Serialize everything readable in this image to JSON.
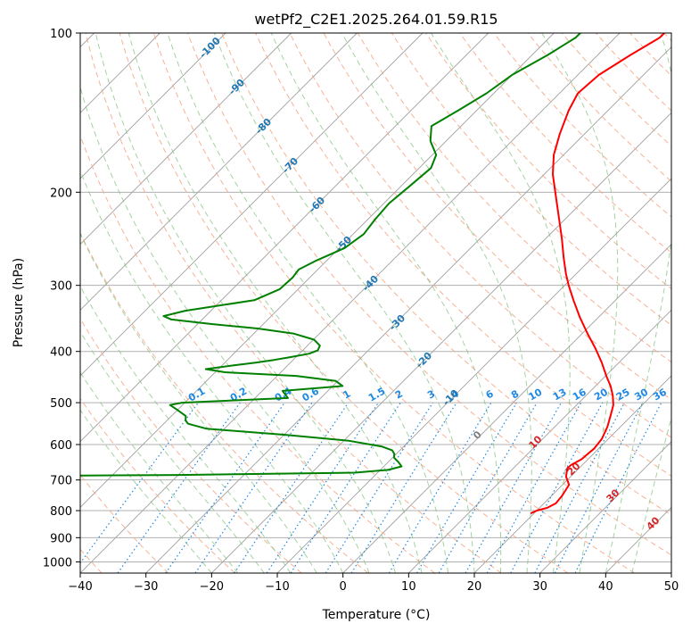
{
  "colors": {
    "temperature": "#ff0000",
    "dewpoint": "#008000",
    "isotherm": "#a0a0a0",
    "dry_adiabat": "#f4a582",
    "moist_adiabat": "#7fbf7b",
    "mixing_ratio": "#1e88e5",
    "dry_adiabat_label": "#1f77b4",
    "moist_label": "#d62728",
    "zero_label": "#808080",
    "boundary": "#d2b48c"
  },
  "chart_data": {
    "type": "line",
    "title": "wetPf2_C2E1.2025.264.01.59.R15",
    "xlabel": "Temperature (°C)",
    "ylabel": "Pressure (hPa)",
    "xlim": [
      -40,
      50
    ],
    "ylim": [
      1050,
      100
    ],
    "x_ticks": [
      -40,
      -30,
      -20,
      -10,
      0,
      10,
      20,
      30,
      40,
      50
    ],
    "y_ticks": [
      100,
      200,
      300,
      400,
      500,
      600,
      700,
      800,
      900,
      1000
    ],
    "x_tick_labels": [
      "−40",
      "−30",
      "−20",
      "−10",
      "0",
      "10",
      "20",
      "30",
      "40",
      "50"
    ],
    "y_tick_labels": [
      "100",
      "200",
      "300",
      "400",
      "500",
      "600",
      "700",
      "800",
      "900",
      "1000"
    ],
    "skew": 1.0,
    "series": [
      {
        "name": "Temperature",
        "p": [
          810,
          800,
          790,
          775,
          750,
          715,
          690,
          665,
          655,
          640,
          610,
          585,
          555,
          525,
          505,
          485,
          465,
          445,
          420,
          395,
          370,
          345,
          320,
          300,
          285,
          265,
          245,
          225,
          205,
          185,
          170,
          155,
          140,
          130,
          120,
          110,
          102,
          100
        ],
        "t": [
          19.5,
          20.0,
          21.2,
          21.8,
          21.6,
          21.0,
          19.3,
          18.2,
          18.3,
          19.0,
          19.3,
          19.0,
          18.0,
          16.6,
          15.6,
          14.1,
          12.3,
          10.1,
          7.4,
          4.3,
          0.8,
          -2.8,
          -6.4,
          -9.4,
          -11.6,
          -14.5,
          -17.5,
          -20.9,
          -24.6,
          -28.7,
          -31.5,
          -33.8,
          -36.0,
          -37.2,
          -36.8,
          -35.0,
          -33.2,
          -33.2
        ]
      },
      {
        "name": "Dewpoint",
        "p": [
          690,
          685,
          678,
          670,
          660,
          648,
          635,
          625,
          615,
          605,
          590,
          575,
          560,
          548,
          540,
          530,
          515,
          505,
          500,
          490,
          475,
          465,
          455,
          445,
          438,
          432,
          425,
          420,
          415,
          410,
          404,
          398,
          390,
          380,
          370,
          362,
          355,
          348,
          343,
          335,
          320,
          305,
          290,
          280,
          270,
          255,
          240,
          225,
          210,
          195,
          180,
          170,
          160,
          150,
          140,
          130,
          120,
          110,
          102,
          100
        ],
        "t": [
          -85.0,
          -40.0,
          -13.5,
          -8.8,
          -7.3,
          -8.4,
          -9.8,
          -10.3,
          -11.2,
          -13.4,
          -19.3,
          -29.8,
          -42.7,
          -46.3,
          -47.2,
          -47.8,
          -50.2,
          -51.9,
          -50.4,
          -35.0,
          -36.9,
          -28.5,
          -30.3,
          -37.1,
          -48.5,
          -51.9,
          -48.2,
          -45.3,
          -42.9,
          -40.8,
          -38.5,
          -37.7,
          -38.1,
          -39.9,
          -44.0,
          -50.2,
          -57.9,
          -64.7,
          -66.4,
          -63.9,
          -55.0,
          -52.8,
          -52.6,
          -52.9,
          -51.7,
          -49.2,
          -48.4,
          -48.9,
          -49.2,
          -48.7,
          -48.2,
          -49.4,
          -52.4,
          -54.5,
          -52.8,
          -51.1,
          -50.0,
          -47.6,
          -46.0,
          -46.0
        ]
      }
    ],
    "dry_adiabat_labels": [
      "-100",
      "-90",
      "-80",
      "-70",
      "-60",
      "-50",
      "-40",
      "-30",
      "-20",
      "-10",
      "0"
    ],
    "moist_adiabat_labels": [
      "10",
      "20",
      "30",
      "40"
    ],
    "mixing_ratio_labels": [
      "0.1",
      "0.2",
      "0.4",
      "0.6",
      "1",
      "1.5",
      "2",
      "3",
      "4",
      "6",
      "8",
      "10",
      "13",
      "16",
      "20",
      "25",
      "30",
      "36"
    ]
  }
}
